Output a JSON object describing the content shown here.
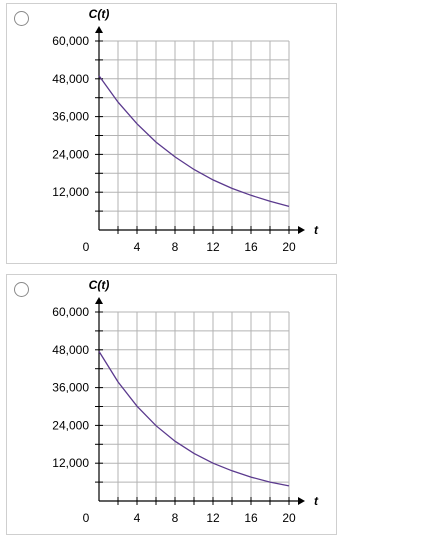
{
  "options": [
    {
      "id": "option-1",
      "selected": false,
      "chart_data": {
        "type": "line",
        "ylabel": "C(t)",
        "xlabel": "t",
        "origin_label": "0",
        "xlim": [
          0,
          20
        ],
        "ylim": [
          0,
          60000
        ],
        "xticks": [
          4,
          8,
          12,
          16,
          20
        ],
        "xtick_labels": [
          "4",
          "8",
          "12",
          "16",
          "20"
        ],
        "yticks": [
          12000,
          24000,
          36000,
          48000,
          60000
        ],
        "ytick_labels": [
          "12,000",
          "24,000",
          "36,000",
          "48,000",
          "60,000"
        ],
        "grid": true,
        "x_grid_step": 2,
        "y_grid_step": 6000,
        "series": [
          {
            "color": "#5b3a8e",
            "x": [
              0,
              2,
              4,
              6,
              8,
              10,
              12,
              14,
              16,
              18,
              20
            ],
            "y": [
              49000,
              40600,
              33700,
              27900,
              23200,
              19200,
              15900,
              13200,
              11000,
              9100,
              7500
            ]
          }
        ]
      }
    },
    {
      "id": "option-2",
      "selected": false,
      "chart_data": {
        "type": "line",
        "ylabel": "C(t)",
        "xlabel": "t",
        "origin_label": "0",
        "xlim": [
          0,
          20
        ],
        "ylim": [
          0,
          60000
        ],
        "xticks": [
          4,
          8,
          12,
          16,
          20
        ],
        "xtick_labels": [
          "4",
          "8",
          "12",
          "16",
          "20"
        ],
        "yticks": [
          12000,
          24000,
          36000,
          48000,
          60000
        ],
        "ytick_labels": [
          "12,000",
          "24,000",
          "36,000",
          "48,000",
          "60,000"
        ],
        "grid": true,
        "x_grid_step": 2,
        "y_grid_step": 6000,
        "series": [
          {
            "color": "#5b3a8e",
            "x": [
              0,
              2,
              4,
              6,
              8,
              10,
              12,
              14,
              16,
              18,
              20
            ],
            "y": [
              47500,
              37800,
              30100,
              23900,
              19000,
              15100,
              12000,
              9600,
              7600,
              6000,
              4800
            ]
          }
        ]
      }
    }
  ]
}
